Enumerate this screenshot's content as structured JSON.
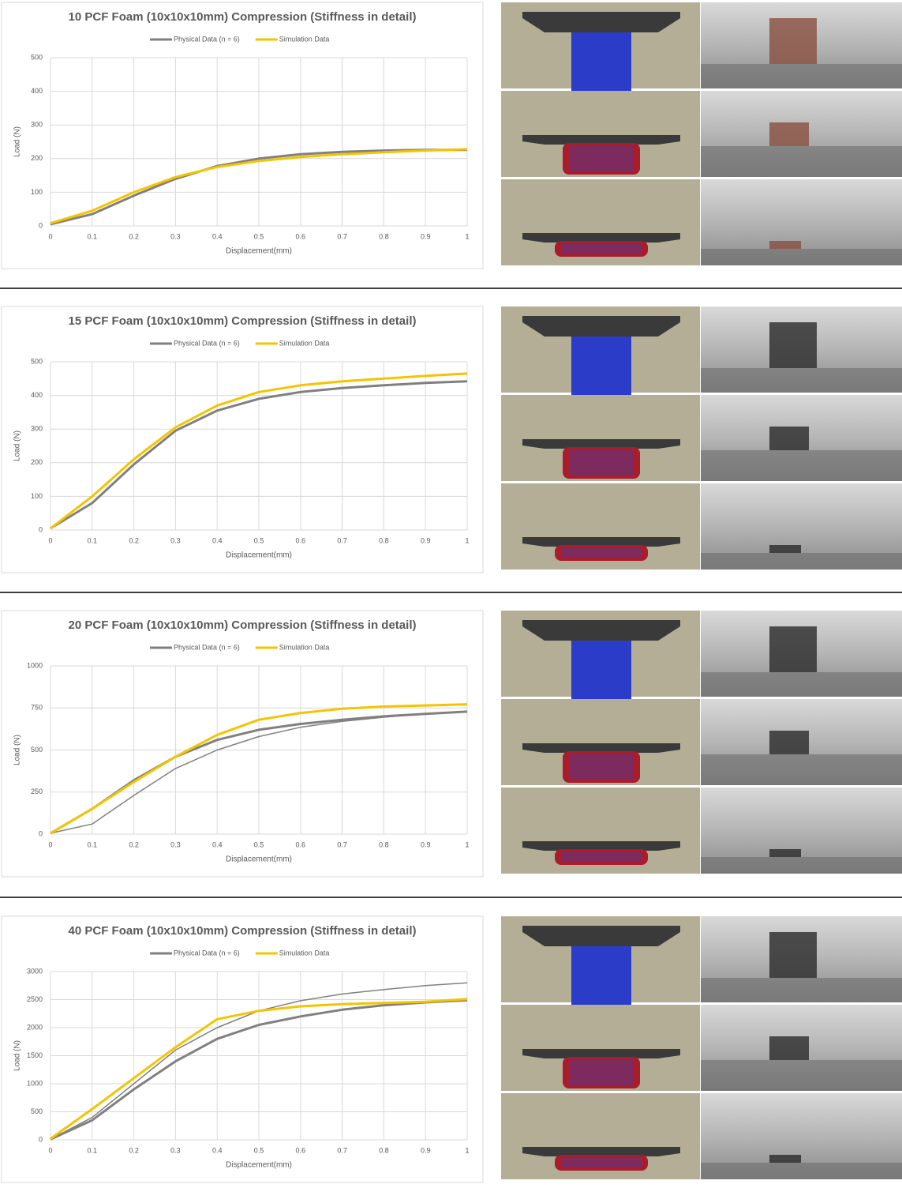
{
  "chart_data": [
    {
      "type": "line",
      "title": "10 PCF Foam (10x10x10mm) Compression (Stiffness in detail)",
      "x_label": "Displacement(mm)",
      "y_label": "Load (N)",
      "x": [
        0,
        0.1,
        0.2,
        0.3,
        0.4,
        0.5,
        0.6,
        0.7,
        0.8,
        0.9,
        1
      ],
      "series": [
        {
          "name": "Physical Data (n = 6)",
          "color": "#808080",
          "values": [
            5,
            35,
            90,
            140,
            178,
            200,
            213,
            220,
            224,
            226,
            226
          ]
        },
        {
          "name": "Simulation Data",
          "color": "#f5c400",
          "values": [
            8,
            45,
            100,
            145,
            175,
            193,
            205,
            213,
            219,
            224,
            228
          ]
        }
      ],
      "xlim": [
        0,
        1
      ],
      "xticks": [
        0,
        0.1,
        0.2,
        0.3,
        0.4,
        0.5,
        0.6,
        0.7,
        0.8,
        0.9,
        1
      ],
      "ylim": [
        0,
        500
      ],
      "yticks": [
        0,
        100,
        200,
        300,
        400,
        500
      ],
      "grid": true,
      "legend": "top"
    },
    {
      "type": "line",
      "title": "15 PCF Foam (10x10x10mm) Compression (Stiffness in detail)",
      "x_label": "Displacement(mm)",
      "y_label": "Load (N)",
      "x": [
        0,
        0.1,
        0.2,
        0.3,
        0.4,
        0.5,
        0.6,
        0.7,
        0.8,
        0.9,
        1
      ],
      "series": [
        {
          "name": "Physical Data (n = 6)",
          "color": "#808080",
          "values": [
            5,
            80,
            195,
            295,
            355,
            390,
            410,
            422,
            430,
            437,
            442
          ]
        },
        {
          "name": "Simulation Data",
          "color": "#f5c400",
          "values": [
            5,
            100,
            210,
            305,
            370,
            410,
            430,
            442,
            450,
            458,
            465
          ]
        }
      ],
      "xlim": [
        0,
        1
      ],
      "xticks": [
        0,
        0.1,
        0.2,
        0.3,
        0.4,
        0.5,
        0.6,
        0.7,
        0.8,
        0.9,
        1
      ],
      "ylim": [
        0,
        500
      ],
      "yticks": [
        0,
        100,
        200,
        300,
        400,
        500
      ],
      "grid": true,
      "legend": "top"
    },
    {
      "type": "line",
      "title": "20 PCF Foam (10x10x10mm) Compression (Stiffness in detail)",
      "x_label": "Displacement(mm)",
      "y_label": "Load (N)",
      "x": [
        0,
        0.1,
        0.2,
        0.3,
        0.4,
        0.5,
        0.6,
        0.7,
        0.8,
        0.9,
        1
      ],
      "series": [
        {
          "name": "Physical Data (n = 6)",
          "color": "#808080",
          "values": [
            5,
            150,
            320,
            460,
            560,
            620,
            655,
            680,
            700,
            715,
            728
          ]
        },
        {
          "color": "#808080",
          "values": [
            5,
            60,
            230,
            390,
            500,
            580,
            635,
            670,
            695,
            715,
            730
          ]
        },
        {
          "name": "Simulation Data",
          "color": "#f5c400",
          "values": [
            5,
            150,
            310,
            460,
            590,
            680,
            720,
            745,
            758,
            765,
            772
          ]
        }
      ],
      "xlim": [
        0,
        1
      ],
      "xticks": [
        0,
        0.1,
        0.2,
        0.3,
        0.4,
        0.5,
        0.6,
        0.7,
        0.8,
        0.9,
        1
      ],
      "ylim": [
        0,
        1000
      ],
      "yticks": [
        0,
        250,
        500,
        750,
        1000
      ],
      "grid": true,
      "legend": "top"
    },
    {
      "type": "line",
      "title": "40 PCF Foam (10x10x10mm) Compression (Stiffness in detail)",
      "x_label": "Displacement(mm)",
      "y_label": "Load (N)",
      "x": [
        0,
        0.1,
        0.2,
        0.3,
        0.4,
        0.5,
        0.6,
        0.7,
        0.8,
        0.9,
        1
      ],
      "series": [
        {
          "name": "Physical Data (n = 6)",
          "color": "#808080",
          "values": [
            10,
            350,
            900,
            1400,
            1800,
            2050,
            2200,
            2320,
            2400,
            2450,
            2490
          ]
        },
        {
          "color": "#808080",
          "values": [
            10,
            400,
            1000,
            1600,
            2000,
            2300,
            2480,
            2600,
            2680,
            2750,
            2800
          ]
        },
        {
          "name": "Simulation Data",
          "color": "#f5c400",
          "values": [
            20,
            550,
            1100,
            1650,
            2150,
            2300,
            2380,
            2420,
            2440,
            2460,
            2510
          ]
        }
      ],
      "xlim": [
        0,
        1
      ],
      "xticks": [
        0,
        0.1,
        0.2,
        0.3,
        0.4,
        0.5,
        0.6,
        0.7,
        0.8,
        0.9,
        1
      ],
      "ylim": [
        0,
        3000
      ],
      "yticks": [
        0,
        500,
        1000,
        1500,
        2000,
        2500,
        3000
      ],
      "grid": true,
      "legend": "top"
    }
  ]
}
